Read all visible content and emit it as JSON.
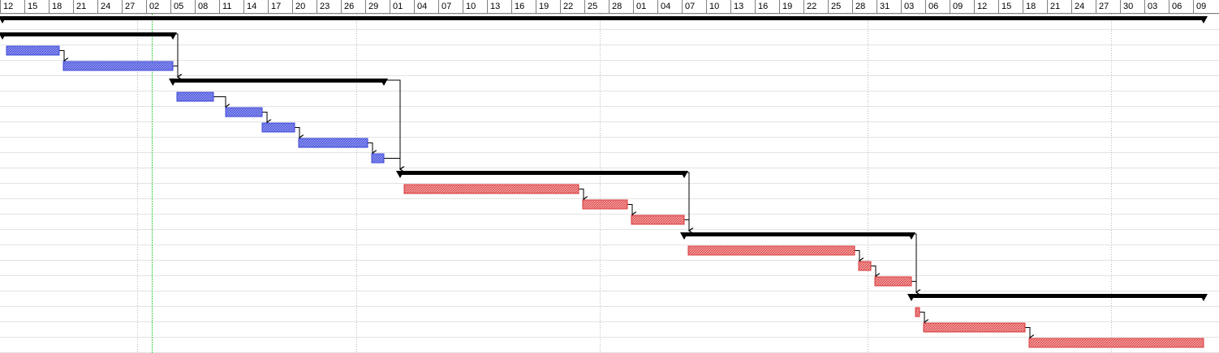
{
  "timescale": {
    "labels": [
      "12",
      "15",
      "18",
      "21",
      "24",
      "27",
      "02",
      "05",
      "08",
      "11",
      "14",
      "17",
      "20",
      "23",
      "26",
      "29",
      "01",
      "04",
      "07",
      "10",
      "13",
      "16",
      "19",
      "22",
      "25",
      "28",
      "01",
      "04",
      "07",
      "10",
      "13",
      "16",
      "19",
      "22",
      "25",
      "28",
      "31",
      "03",
      "06",
      "09",
      "12",
      "15",
      "18",
      "21",
      "24",
      "27",
      "30",
      "03",
      "06",
      "09"
    ],
    "month_boundaries_after_tick": [
      6,
      15,
      25,
      36,
      46
    ],
    "today_offset_days": 0.5,
    "today_after_tick": 6
  },
  "colors": {
    "summary": "#000000",
    "task_blue": "#3b46d8",
    "task_blue_fill": "#8f95ee",
    "task_red": "#d9383a",
    "task_red_fill": "#f2a0a0",
    "link": "#000000",
    "grid": "#e3e3e3"
  },
  "rows": [
    {
      "id": "r0",
      "type": "summary",
      "name": "project-summary",
      "start_day": 0,
      "end_day": 148
    },
    {
      "id": "r1",
      "type": "summary",
      "name": "phase-1-summary",
      "start_day": 0,
      "end_day": 21
    },
    {
      "id": "r2",
      "type": "task",
      "color": "blue",
      "start_day": 0.5,
      "end_day": 7
    },
    {
      "id": "r3",
      "type": "task",
      "color": "blue",
      "start_day": 7.5,
      "end_day": 21
    },
    {
      "id": "r4",
      "type": "summary",
      "name": "phase-2-summary",
      "start_day": 21,
      "end_day": 47
    },
    {
      "id": "r5",
      "type": "task",
      "color": "blue",
      "start_day": 21.5,
      "end_day": 26
    },
    {
      "id": "r6",
      "type": "task",
      "color": "blue",
      "start_day": 27.5,
      "end_day": 32
    },
    {
      "id": "r7",
      "type": "task",
      "color": "blue",
      "start_day": 32,
      "end_day": 36
    },
    {
      "id": "r8",
      "type": "task",
      "color": "blue",
      "start_day": 36.5,
      "end_day": 45
    },
    {
      "id": "r9",
      "type": "task",
      "color": "blue",
      "start_day": 45.5,
      "end_day": 47
    },
    {
      "id": "r10",
      "type": "summary",
      "name": "phase-3-summary",
      "start_day": 49,
      "end_day": 84
    },
    {
      "id": "r11",
      "type": "task",
      "color": "red",
      "start_day": 49.5,
      "end_day": 71
    },
    {
      "id": "r12",
      "type": "task",
      "color": "red",
      "start_day": 71.5,
      "end_day": 77
    },
    {
      "id": "r13",
      "type": "task",
      "color": "red",
      "start_day": 77.5,
      "end_day": 84
    },
    {
      "id": "r14",
      "type": "summary",
      "name": "phase-4-summary",
      "start_day": 84,
      "end_day": 112
    },
    {
      "id": "r15",
      "type": "task",
      "color": "red",
      "start_day": 84.5,
      "end_day": 105
    },
    {
      "id": "r16",
      "type": "task",
      "color": "red",
      "start_day": 105.5,
      "end_day": 107
    },
    {
      "id": "r17",
      "type": "task",
      "color": "red",
      "start_day": 107.5,
      "end_day": 112
    },
    {
      "id": "r18",
      "type": "summary",
      "name": "phase-5-summary",
      "start_day": 112,
      "end_day": 148
    },
    {
      "id": "r19",
      "type": "task",
      "color": "red",
      "start_day": 112.5,
      "end_day": 113
    },
    {
      "id": "r20",
      "type": "task",
      "color": "red",
      "start_day": 113.5,
      "end_day": 126
    },
    {
      "id": "r21",
      "type": "task",
      "color": "red",
      "start_day": 126.5,
      "end_day": 148
    }
  ],
  "links": [
    [
      "r1",
      "r4"
    ],
    [
      "r2",
      "r3"
    ],
    [
      "r3",
      "r4"
    ],
    [
      "r4",
      "r10"
    ],
    [
      "r5",
      "r6"
    ],
    [
      "r6",
      "r7"
    ],
    [
      "r7",
      "r8"
    ],
    [
      "r8",
      "r9"
    ],
    [
      "r9",
      "r10"
    ],
    [
      "r10",
      "r14"
    ],
    [
      "r11",
      "r12"
    ],
    [
      "r12",
      "r13"
    ],
    [
      "r13",
      "r14"
    ],
    [
      "r14",
      "r18"
    ],
    [
      "r15",
      "r16"
    ],
    [
      "r16",
      "r17"
    ],
    [
      "r17",
      "r18"
    ],
    [
      "r19",
      "r20"
    ],
    [
      "r20",
      "r21"
    ]
  ]
}
